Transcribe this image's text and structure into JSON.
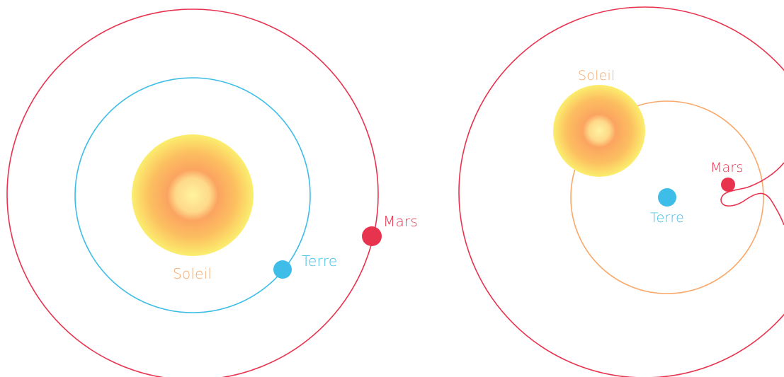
{
  "heliocentric": {
    "sun_label": "Soleil",
    "earth_label": "Terre",
    "mars_label": "Mars"
  },
  "geocentric": {
    "sun_label": "Soleil",
    "earth_label": "Terre",
    "mars_label": "Mars"
  },
  "colors": {
    "mars": "#e8334f",
    "earth": "#3dbde8",
    "sun_orbit": "#f9a86a",
    "sun_text": "#f6a96b",
    "sun_core": "#fff08c",
    "sun_edge": "#fbe96a",
    "sun_mid": "#fba460"
  }
}
